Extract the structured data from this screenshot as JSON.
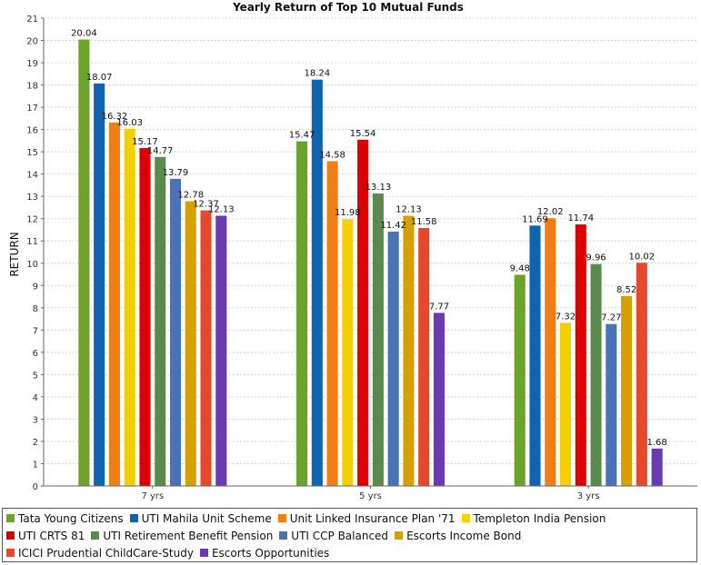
{
  "chart_data": {
    "type": "bar",
    "title": "Yearly Return of Top 10 Mutual Funds",
    "xlabel": "",
    "ylabel": "RETURN",
    "ylim": [
      0,
      21
    ],
    "yticks": [
      0,
      1,
      2,
      3,
      4,
      5,
      6,
      7,
      8,
      9,
      10,
      11,
      12,
      13,
      14,
      15,
      16,
      17,
      18,
      19,
      20,
      21
    ],
    "grid": true,
    "legend_position": "bottom",
    "categories": [
      "7 yrs",
      "5 yrs",
      "3 yrs"
    ],
    "series": [
      {
        "name": "Tata Young Citizens",
        "color": "#6aa22a",
        "values": [
          20.04,
          15.47,
          9.48
        ]
      },
      {
        "name": "UTI Mahila Unit Scheme",
        "color": "#0f63b0",
        "values": [
          18.07,
          18.24,
          11.69
        ]
      },
      {
        "name": "Unit Linked Insurance Plan '71",
        "color": "#f07e14",
        "values": [
          16.32,
          14.58,
          12.02
        ]
      },
      {
        "name": "Templeton India Pension",
        "color": "#f5d000",
        "values": [
          16.03,
          11.98,
          7.32
        ]
      },
      {
        "name": "UTI CRTS 81",
        "color": "#dd0000",
        "values": [
          15.17,
          15.54,
          11.74
        ]
      },
      {
        "name": "UTI Retirement Benefit Pension",
        "color": "#5c8a4e",
        "values": [
          14.77,
          13.13,
          9.96
        ]
      },
      {
        "name": "UTI CCP Balanced",
        "color": "#4a72b7",
        "values": [
          13.79,
          11.42,
          7.27
        ]
      },
      {
        "name": "Escorts Income Bond",
        "color": "#d6a000",
        "values": [
          12.78,
          12.13,
          8.52
        ]
      },
      {
        "name": "ICICI Prudential ChildCare-Study",
        "color": "#e5482a",
        "values": [
          12.37,
          11.58,
          10.02
        ]
      },
      {
        "name": "Escorts Opportunities",
        "color": "#6a3ab2",
        "values": [
          12.13,
          7.77,
          1.68
        ]
      }
    ]
  }
}
